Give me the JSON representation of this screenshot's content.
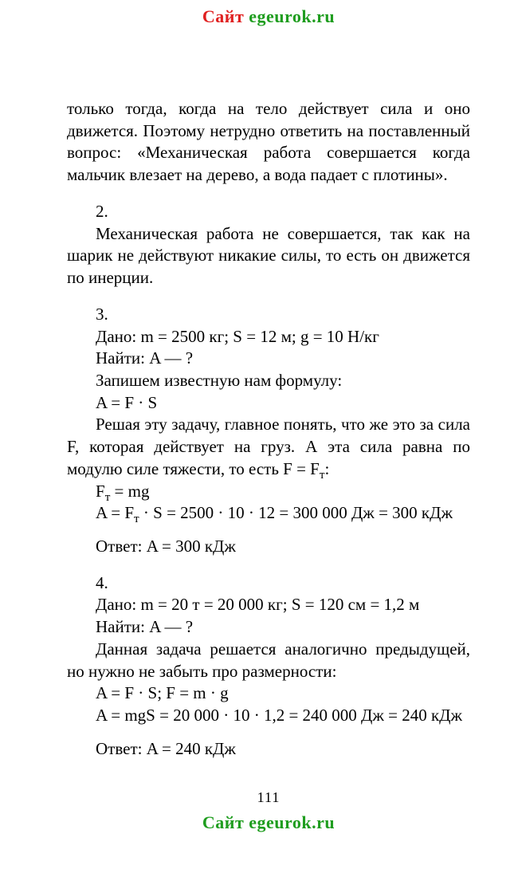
{
  "watermark": {
    "prefix": "Сайт ",
    "domain": "egeurok.ru",
    "top_prefix_color": "#e02020",
    "top_domain_color": "#1f9d1f",
    "bottom_prefix_color": "#1f9d1f",
    "bottom_domain_color": "#1f9d1f"
  },
  "intro_paragraph": "только тогда, когда на тело действует сила и оно движется. Поэтому нетрудно ответить на постав­ленный вопрос: «Механическая работа совершает­ся когда мальчик влезает на дерево, а вода падает с плотины».",
  "problem2": {
    "number": "2.",
    "text": "Механическая работа не совершается, так как на шарик не действуют никакие силы, то есть он дви­жется по инерции."
  },
  "problem3": {
    "number": "3.",
    "given": "Дано: m = 2500 кг; S = 12 м; g = 10 Н/кг",
    "find": "Найти: A — ?",
    "line1": "Запишем известную нам формулу:",
    "formula1": "A = F · S",
    "explain": "Решая эту задачу, главное понять, что же это за сила F, которая действует на груз. А эта сила равна по модулю силе тяжести, то есть F = F",
    "explain_sub": "т",
    "explain_tail": ":",
    "formula2_pre": "F",
    "formula2_sub": "т",
    "formula2_post": " = mg",
    "formula3_pre": "A = F",
    "formula3_sub": "т",
    "formula3_post": " · S = 2500 · 10 · 12 = 300 000 Дж = 300 кДж",
    "answer": "Ответ: A = 300 кДж"
  },
  "problem4": {
    "number": "4.",
    "given": "Дано: m = 20 т = 20 000 кг; S = 120 см = 1,2 м",
    "find": "Найти: A — ?",
    "explain": "Данная задача решается аналогично предыдущей, но нужно не забыть про размерности:",
    "formula1": "A = F · S; F = m · g",
    "formula2": "A = mgS = 20 000 · 10 · 1,2 = 240 000 Дж = 240 кДж",
    "answer": "Ответ: A = 240 кДж"
  },
  "page_number": "111"
}
